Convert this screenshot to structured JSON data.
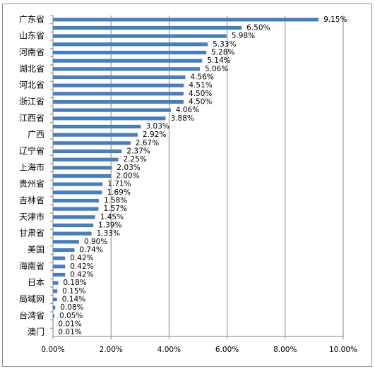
{
  "chart_data": {
    "type": "bar",
    "orientation": "horizontal",
    "categories": [
      "广东省",
      null,
      "山东省",
      null,
      "河南省",
      null,
      "湖北省",
      null,
      "河北省",
      null,
      "浙江省",
      null,
      "江西省",
      null,
      "广西",
      null,
      "辽宁省",
      null,
      "上海市",
      null,
      "贵州省",
      null,
      "吉林省",
      null,
      "天津市",
      null,
      "甘肃省",
      null,
      "美国",
      null,
      "海南省",
      null,
      "日本",
      null,
      "局域网",
      null,
      "台湾省",
      null,
      "澳门"
    ],
    "values": [
      9.15,
      6.5,
      5.98,
      5.33,
      5.28,
      5.14,
      5.06,
      4.56,
      4.51,
      4.5,
      4.5,
      4.06,
      3.88,
      3.03,
      2.92,
      2.67,
      2.37,
      2.25,
      2.03,
      2.0,
      1.71,
      1.69,
      1.58,
      1.57,
      1.45,
      1.39,
      1.33,
      0.9,
      0.74,
      0.42,
      0.42,
      0.42,
      0.18,
      0.15,
      0.14,
      0.08,
      0.05,
      0.01,
      0.01
    ],
    "value_labels": [
      "9.15%",
      "6.50%",
      "5.98%",
      "5.33%",
      "5.28%",
      "5.14%",
      "5.06%",
      "4.56%",
      "4.51%",
      "4.50%",
      "4.50%",
      "4.06%",
      "3.88%",
      "3.03%",
      "2.92%",
      "2.67%",
      "2.37%",
      "2.25%",
      "2.03%",
      "2.00%",
      "1.71%",
      "1.69%",
      "1.58%",
      "1.57%",
      "1.45%",
      "1.39%",
      "1.33%",
      "0.90%",
      "0.74%",
      "0.42%",
      "0.42%",
      "0.42%",
      "0.18%",
      "0.15%",
      "0.14%",
      "0.08%",
      "0.05%",
      "0.01%",
      "0.01%"
    ],
    "color": "#4a7ebb",
    "xlim": [
      0,
      10
    ],
    "xticks": [
      {
        "value": 0,
        "label": "0.00%"
      },
      {
        "value": 2,
        "label": "2.00%"
      },
      {
        "value": 4,
        "label": "4.00%"
      },
      {
        "value": 6,
        "label": "6.00%"
      },
      {
        "value": 8,
        "label": "8.00%"
      },
      {
        "value": 10,
        "label": "10.00%"
      }
    ],
    "grid": true
  }
}
